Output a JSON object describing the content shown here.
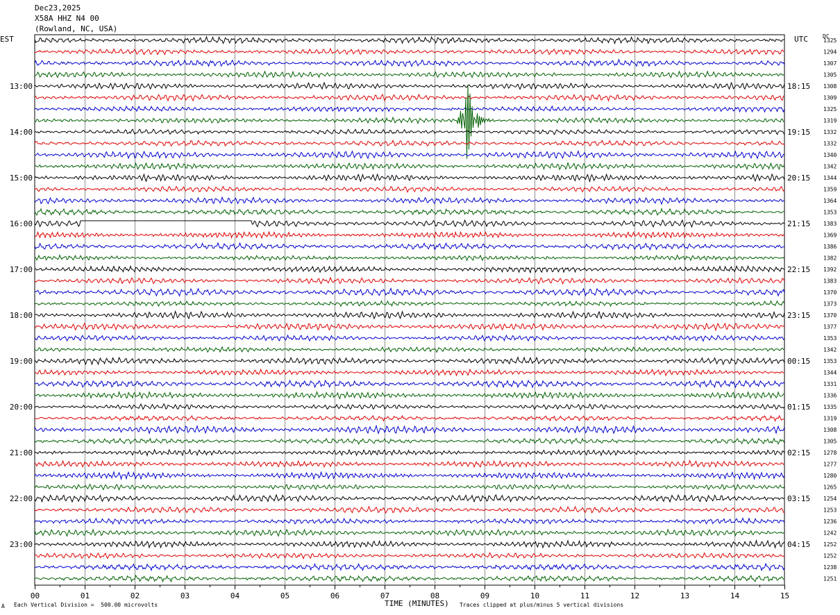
{
  "header": {
    "date": "Dec23,2025",
    "station": "X58A HHZ N4 00",
    "location": "(Rowland, NC, USA)"
  },
  "left_zone": "EST",
  "right_zone": "UTC",
  "dc_label": "DC",
  "footer": {
    "scale_note": "Each Vertical Division =  500.00 microvolts",
    "xlabel": "TIME (MINUTES)",
    "clip_note": "Traces clipped at plus/minus 5 vertical divisions",
    "corner_mark": "A"
  },
  "colors": {
    "trace_cycle": [
      "#000000",
      "#e00000",
      "#0000d0",
      "#006000"
    ],
    "grid": "#909090"
  },
  "chart_data": {
    "type": "line",
    "title": "Dec23,2025",
    "xlabel": "TIME (MINUTES)",
    "xlim": [
      0,
      15
    ],
    "x_ticks": [
      "00",
      "01",
      "02",
      "03",
      "04",
      "05",
      "06",
      "07",
      "08",
      "09",
      "10",
      "11",
      "12",
      "13",
      "14",
      "15"
    ],
    "hour_labels_left": [
      "13:00",
      "14:00",
      "15:00",
      "16:00",
      "17:00",
      "18:00",
      "19:00",
      "20:00",
      "21:00",
      "22:00",
      "23:00"
    ],
    "hour_labels_right": [
      "18:15",
      "19:15",
      "20:15",
      "21:15",
      "22:15",
      "23:15",
      "00:15",
      "01:15",
      "02:15",
      "03:15",
      "04:15"
    ],
    "trace_count": 48,
    "dc_offsets": [
      1325,
      1294,
      1307,
      1305,
      1308,
      1309,
      1325,
      1319,
      1332,
      1332,
      1340,
      1342,
      1344,
      1359,
      1364,
      1353,
      1383,
      1369,
      1386,
      1382,
      1392,
      1383,
      1370,
      1373,
      1370,
      1377,
      1353,
      1342,
      1353,
      1344,
      1331,
      1336,
      1335,
      1319,
      1308,
      1305,
      1278,
      1277,
      1280,
      1265,
      1254,
      1253,
      1236,
      1242,
      1252,
      1252,
      1238,
      1251
    ],
    "event": {
      "trace_index": 7,
      "minute": 8.65
    },
    "dropout": {
      "trace_index": 16,
      "start_minute": 0.9,
      "end_minute": 4.35
    }
  }
}
